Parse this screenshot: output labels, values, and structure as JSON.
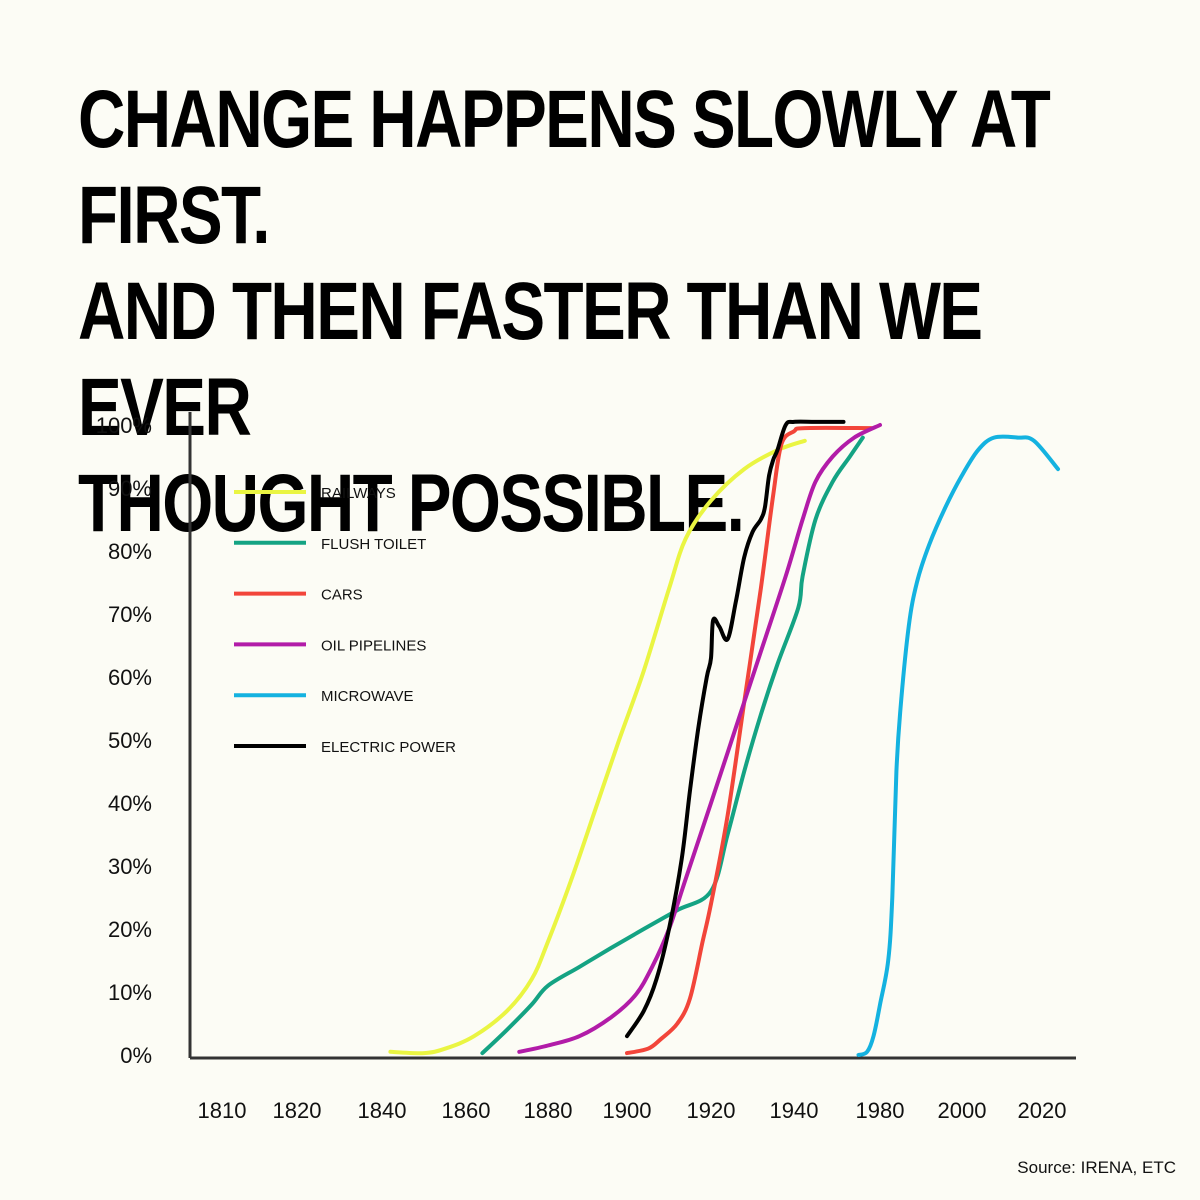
{
  "headline": {
    "line1": "CHANGE HAPPENS SLOWLY AT FIRST.",
    "line2": "AND THEN FASTER THAN WE EVER",
    "line3": "THOUGHT POSSIBLE."
  },
  "source": "Source: IRENA, ETC",
  "colors": {
    "background": "#fcfcf5",
    "axis": "#333333"
  },
  "chart_data": {
    "type": "line",
    "x_tick_labels": [
      "1810",
      "1820",
      "1840",
      "1860",
      "1880",
      "1900",
      "1920",
      "1940",
      "1980",
      "2000",
      "2020"
    ],
    "y_tick_labels": [
      "0%",
      "10%",
      "20%",
      "30%",
      "40%",
      "50%",
      "60%",
      "70%",
      "80%",
      "90%",
      "100%"
    ],
    "ylim": [
      0,
      100
    ],
    "grid": false,
    "legend_position": "top-left",
    "series": [
      {
        "name": "RAILWAYS",
        "color": "#eaf542",
        "points": [
          [
            1842,
            0.5
          ],
          [
            1850,
            0.3
          ],
          [
            1855,
            1
          ],
          [
            1862,
            3
          ],
          [
            1870,
            7
          ],
          [
            1876,
            12
          ],
          [
            1880,
            18
          ],
          [
            1886,
            28
          ],
          [
            1892,
            39
          ],
          [
            1898,
            50
          ],
          [
            1904,
            61
          ],
          [
            1910,
            74
          ],
          [
            1914,
            82
          ],
          [
            1920,
            88
          ],
          [
            1928,
            93
          ],
          [
            1936,
            96
          ],
          [
            1945,
            97.5
          ]
        ]
      },
      {
        "name": "FLUSH TOILET",
        "color": "#14a383",
        "points": [
          [
            1864,
            0.3
          ],
          [
            1870,
            4
          ],
          [
            1876,
            8
          ],
          [
            1880,
            11
          ],
          [
            1888,
            14
          ],
          [
            1896,
            17
          ],
          [
            1904,
            20
          ],
          [
            1912,
            23
          ],
          [
            1920,
            26
          ],
          [
            1924,
            35
          ],
          [
            1928,
            45
          ],
          [
            1932,
            54
          ],
          [
            1936,
            62
          ],
          [
            1942,
            71
          ],
          [
            1944,
            76
          ],
          [
            1950,
            85
          ],
          [
            1958,
            91
          ],
          [
            1966,
            95
          ],
          [
            1972,
            98
          ]
        ]
      },
      {
        "name": "CARS",
        "color": "#f2453a",
        "points": [
          [
            1900,
            0.3
          ],
          [
            1905,
            1
          ],
          [
            1908,
            2.5
          ],
          [
            1912,
            5
          ],
          [
            1915,
            9
          ],
          [
            1918,
            18
          ],
          [
            1920,
            24
          ],
          [
            1924,
            38
          ],
          [
            1928,
            56
          ],
          [
            1932,
            74
          ],
          [
            1935,
            89
          ],
          [
            1937,
            97
          ],
          [
            1940,
            99
          ],
          [
            1945,
            99.5
          ],
          [
            1976,
            99.5
          ]
        ]
      },
      {
        "name": "OIL PIPELINES",
        "color": "#b21ca8",
        "points": [
          [
            1873,
            0.5
          ],
          [
            1880,
            1.5
          ],
          [
            1888,
            3
          ],
          [
            1896,
            6
          ],
          [
            1902,
            9.5
          ],
          [
            1906,
            14
          ],
          [
            1910,
            20
          ],
          [
            1914,
            28
          ],
          [
            1920,
            40
          ],
          [
            1926,
            52
          ],
          [
            1932,
            64
          ],
          [
            1938,
            76
          ],
          [
            1944,
            85
          ],
          [
            1950,
            91
          ],
          [
            1958,
            95
          ],
          [
            1968,
            98
          ],
          [
            1980,
            100
          ]
        ]
      },
      {
        "name": "MICROWAVE",
        "color": "#14b2e0",
        "points": [
          [
            1970,
            0
          ],
          [
            1974,
            0.5
          ],
          [
            1977,
            3
          ],
          [
            1980,
            8
          ],
          [
            1982,
            15
          ],
          [
            1983,
            25
          ],
          [
            1984,
            45
          ],
          [
            1985,
            55
          ],
          [
            1987,
            68
          ],
          [
            1989,
            75
          ],
          [
            1992,
            81
          ],
          [
            1996,
            87
          ],
          [
            2000,
            92
          ],
          [
            2004,
            96
          ],
          [
            2008,
            98
          ],
          [
            2014,
            98
          ],
          [
            2018,
            97.5
          ],
          [
            2024,
            93
          ]
        ]
      },
      {
        "name": "ELECTRIC POWER",
        "color": "#000000",
        "points": [
          [
            1900,
            3
          ],
          [
            1904,
            7
          ],
          [
            1907,
            12
          ],
          [
            1910,
            20
          ],
          [
            1913,
            31
          ],
          [
            1915,
            42
          ],
          [
            1917,
            52
          ],
          [
            1919,
            60
          ],
          [
            1920,
            63
          ],
          [
            1920.5,
            69
          ],
          [
            1922,
            68
          ],
          [
            1924,
            66
          ],
          [
            1926,
            72
          ],
          [
            1928,
            79
          ],
          [
            1930,
            83
          ],
          [
            1932,
            85
          ],
          [
            1933,
            87
          ],
          [
            1934,
            92
          ],
          [
            1935,
            94.5
          ],
          [
            1936,
            96
          ],
          [
            1938,
            100
          ],
          [
            1940,
            100.5
          ],
          [
            1950,
            100.5
          ],
          [
            1963,
            100.5
          ]
        ]
      }
    ]
  }
}
